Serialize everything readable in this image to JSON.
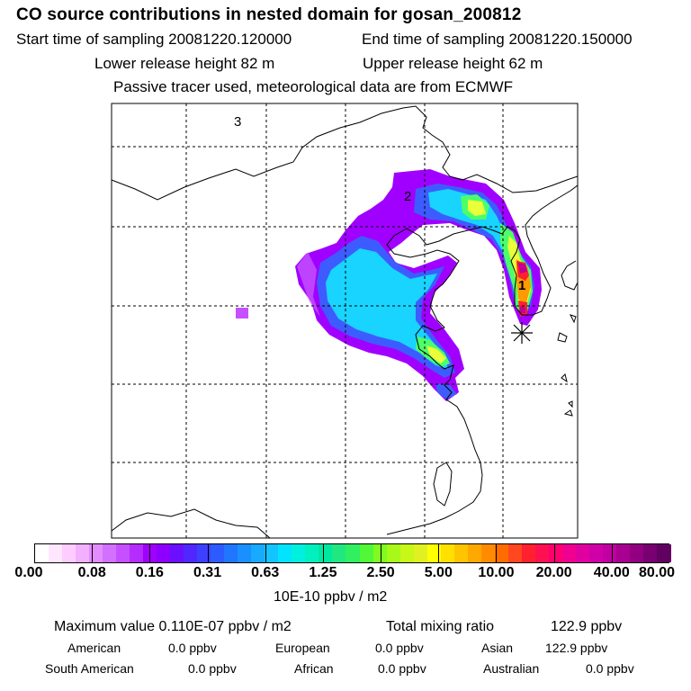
{
  "header": {
    "title": "CO  source contributions in nested domain for gosan_200812",
    "start_label": "Start time of sampling 20081220.120000",
    "end_label": "End time of sampling 20081220.150000",
    "lower_label": "Lower release height   82 m",
    "upper_label": "Upper release height   62 m",
    "info": "Passive tracer used, meteorological data are from ECMWF"
  },
  "map": {
    "markers": [
      "1",
      "2",
      "3"
    ],
    "colors": {
      "violet": "#a000ff",
      "blue": "#3d5cff",
      "cyan": "#18d4ff",
      "green": "#4cff6a",
      "yellow": "#e8ff3a",
      "orange": "#ff9a00",
      "red": "#ff2030",
      "magenta": "#c00090"
    }
  },
  "colorbar": {
    "ticks": [
      "0.00",
      "0.08",
      "0.16",
      "0.31",
      "0.63",
      "1.25",
      "2.50",
      "5.00",
      "10.00",
      "20.00",
      "40.00",
      "80.00"
    ],
    "colors": [
      "#ffffff",
      "#ffe6ff",
      "#ffccff",
      "#f2b0ff",
      "#e38cff",
      "#d270ff",
      "#c650ff",
      "#b52cff",
      "#a000ff",
      "#8d00ff",
      "#6a10ff",
      "#5028ff",
      "#3d40ff",
      "#2c5cff",
      "#2076ff",
      "#1a90ff",
      "#18aaff",
      "#14c4ff",
      "#00e4ff",
      "#00f0e0",
      "#00f0c0",
      "#00e8a0",
      "#20e880",
      "#30f060",
      "#50f838",
      "#80fa20",
      "#a8f818",
      "#c8f818",
      "#e0f020",
      "#ffff00",
      "#ffe000",
      "#ffc400",
      "#ffa800",
      "#ff8c00",
      "#ff6c00",
      "#ff4820",
      "#ff2030",
      "#ff1050",
      "#ff0070",
      "#f00090",
      "#e000a0",
      "#d000a8",
      "#c000a0",
      "#a80090",
      "#900080",
      "#780070",
      "#600060"
    ],
    "units": "10E-10 ppbv / m2"
  },
  "stats": {
    "max_label": "Maximum value  0.110E-07 ppbv / m2",
    "total_label": "Total mixing ratio",
    "total_value": "122.9 ppbv",
    "american_label": "American",
    "american_value": "0.0 ppbv",
    "european_label": "European",
    "european_value": "0.0 ppbv",
    "asian_label": "Asian",
    "asian_value": "122.9 ppbv",
    "south_american_label": "South American",
    "south_american_value": "0.0 ppbv",
    "african_label": "African",
    "african_value": "0.0 ppbv",
    "australian_label": "Australian",
    "australian_value": "0.0 ppbv"
  }
}
